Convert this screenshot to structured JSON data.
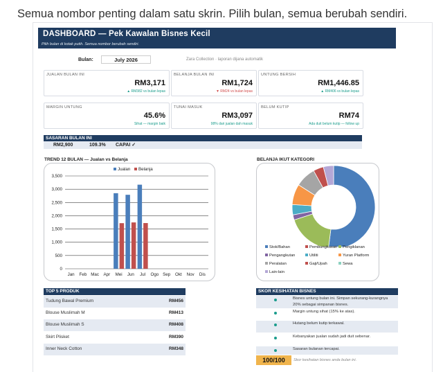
{
  "caption": "Semua nombor penting dalam satu skrin. Pilih bulan, semua berubah sendiri.",
  "header": {
    "title": "DASHBOARD — Pek Kawalan Bisnes Kecil",
    "subtitle": "Pilih bulan di kotak putih. Semua nombor berubah sendiri."
  },
  "month": {
    "label": "Bulan:",
    "value": "July 2026"
  },
  "brand": "Zara Collection · laporan dijana automatik",
  "kpis": [
    {
      "title": "JUALAN BULAN INI",
      "value": "RM3,171",
      "sub": "▲ RM382 vs bulan lepas",
      "status": "up"
    },
    {
      "title": "BELANJA BULAN INI",
      "value": "RM1,724",
      "sub": "▼ RM24 vs bulan lepas",
      "status": "down"
    },
    {
      "title": "UNTUNG BERSIH",
      "value": "RM1,446.85",
      "sub": "▲ RM406 vs bulan lepas",
      "status": "up"
    },
    {
      "title": "MARGIN UNTUNG",
      "value": "45.6%",
      "sub": "Sihat — margin baik",
      "status": "up"
    },
    {
      "title": "TUNAI MASUK",
      "value": "RM3,097",
      "sub": "98% dari jualan dah masuk",
      "status": "up"
    },
    {
      "title": "BELUM KUTIP",
      "value": "RM74",
      "sub": "Ada duit belum kutip — follow up",
      "status": "up"
    }
  ],
  "target": {
    "title": "SASARAN BULAN INI",
    "amount": "RM2,900",
    "percent": "109.3%",
    "status": "CAPAI ✓"
  },
  "trend_title": "TREND 12 BULAN — Jualan vs Belanja",
  "category_title": "BELANJA IKUT KATEGORI",
  "colors": {
    "navy": "#1f3c60",
    "sales": "#4a7ebb",
    "expense": "#c0504d",
    "teal": "#1a9c8c",
    "score": "#f0b44c"
  },
  "chart_data": [
    {
      "type": "bar",
      "title": "TREND 12 BULAN — Jualan vs Belanja",
      "categories": [
        "Jan",
        "Feb",
        "Mac",
        "Apr",
        "Mei",
        "Jun",
        "Jul",
        "Ogo",
        "Sep",
        "Okt",
        "Nov",
        "Dis"
      ],
      "series": [
        {
          "name": "Jualan",
          "values": [
            0,
            0,
            0,
            0,
            2850,
            2790,
            3171,
            0,
            0,
            0,
            0,
            0
          ]
        },
        {
          "name": "Belanja",
          "values": [
            0,
            0,
            0,
            0,
            1720,
            1748,
            1724,
            0,
            0,
            0,
            0,
            0
          ]
        }
      ],
      "yticks": [
        "0",
        "500",
        "1,000",
        "1,500",
        "2,000",
        "2,500",
        "3,000",
        "3,500"
      ],
      "ylim": [
        0,
        3500
      ],
      "grid": true,
      "legend": "top"
    },
    {
      "type": "pie",
      "title": "BELANJA IKUT KATEGORI",
      "labels": [
        "Stok/Bahan",
        "Pembungkusan",
        "Pengiklanan",
        "Pengangkutan",
        "Utiliti",
        "Yuran Platform",
        "Peralatan",
        "Gaji/Upah",
        "Sewa",
        "Lain-lain"
      ],
      "values": [
        52,
        0,
        18,
        2,
        4,
        8,
        8,
        4,
        0,
        4
      ],
      "colors": [
        "#4a7ebb",
        "#c0504d",
        "#9bbb59",
        "#8064a2",
        "#4bacc6",
        "#f79646",
        "#a5a5a5",
        "#c0504d",
        "#8cd1c0",
        "#b4a7d6"
      ],
      "legend": "bottom"
    }
  ],
  "products": {
    "title": "TOP 5 PRODUK",
    "items": [
      {
        "name": "Tudung Bawal Premium",
        "value": "RM456"
      },
      {
        "name": "Blouse Muslimah M",
        "value": "RM413"
      },
      {
        "name": "Blouse Muslimah S",
        "value": "RM408"
      },
      {
        "name": "Skirt Plisket",
        "value": "RM390"
      },
      {
        "name": "Inner Neck Cotton",
        "value": "RM348"
      }
    ]
  },
  "health": {
    "title": "SKOR KESIHATAN BISNES",
    "items": [
      "Bisnes untung bulan ini. Simpan sekurang-kurangnya 20% sebagai simpanan bisnes.",
      "Margin untung sihat (15% ke atas).",
      "Hutang belum kutip terkawal.",
      "Kebanyakan jualan sudah jadi duit sebenar.",
      "Sasaran bulanan tercapai."
    ],
    "score": "100/100",
    "score_note": "Skor kesihatan bisnes anda bulan ini."
  }
}
